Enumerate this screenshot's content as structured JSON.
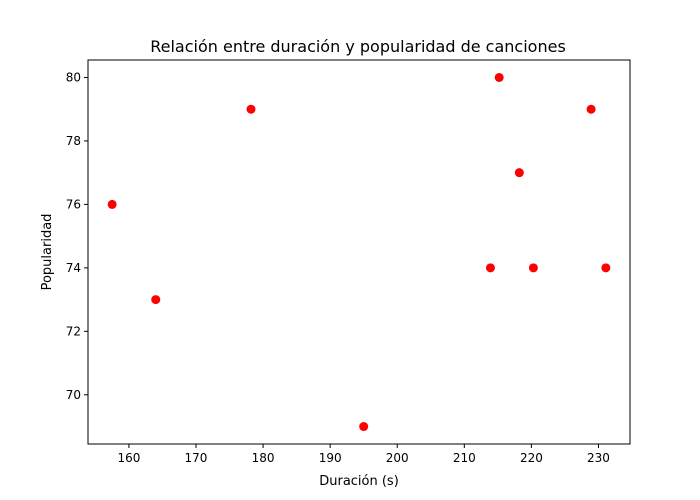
{
  "chart_data": {
    "type": "scatter",
    "title": "Relación entre duración y popularidad de canciones",
    "xlabel": "Duración (s)",
    "ylabel": "Popularidad",
    "xlim": [
      153.9,
      234.7
    ],
    "ylim": [
      68.45,
      80.55
    ],
    "xticks": [
      160,
      170,
      180,
      190,
      200,
      210,
      220,
      230
    ],
    "yticks": [
      70,
      72,
      74,
      76,
      78,
      80
    ],
    "grid": false,
    "marker_color": "#ff0000",
    "points": [
      {
        "x": 157.5,
        "y": 76
      },
      {
        "x": 164.0,
        "y": 73
      },
      {
        "x": 178.2,
        "y": 79
      },
      {
        "x": 195.0,
        "y": 69
      },
      {
        "x": 213.9,
        "y": 74
      },
      {
        "x": 215.2,
        "y": 80
      },
      {
        "x": 218.2,
        "y": 77
      },
      {
        "x": 220.3,
        "y": 74
      },
      {
        "x": 228.9,
        "y": 79
      },
      {
        "x": 231.1,
        "y": 74
      }
    ]
  }
}
